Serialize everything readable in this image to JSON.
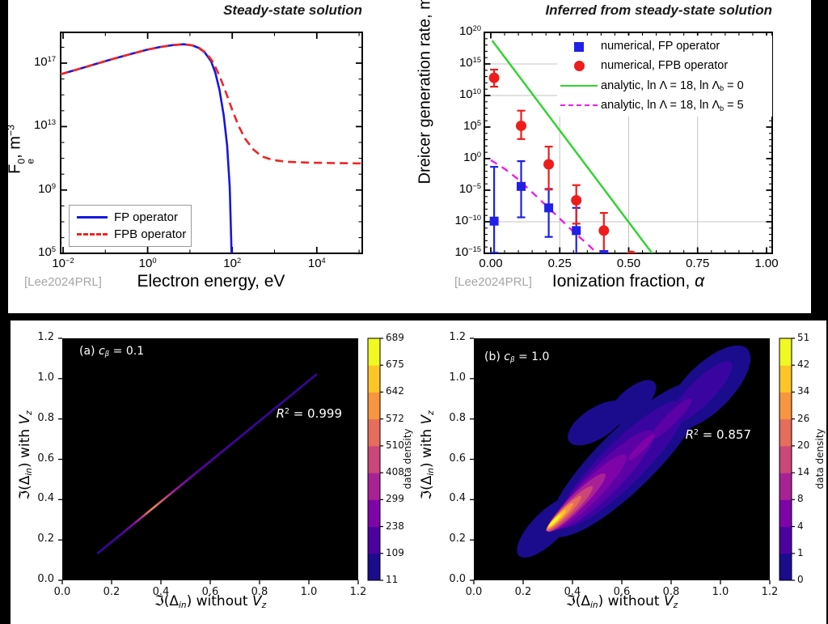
{
  "page": {
    "background": "#000000",
    "panel_background": "#ffffff"
  },
  "chart_data": {
    "top_left": {
      "type": "line",
      "title": "Steady-state solution",
      "xlabel": "Electron energy, eV",
      "ylabel_html": "F<span class=\"ss\"><span>0</span><span>e</span></span>, m<sup>−3</sup>",
      "citation": "[Lee2024PRL]",
      "x_axis": "log10 electron energy (eV)",
      "y_axis": "log10 F (m^-3)",
      "x_tick_exps": [
        -2,
        0,
        2,
        4
      ],
      "y_tick_exps": [
        17,
        13,
        9,
        5
      ],
      "xlim_exp": [
        -2.06,
        5.07
      ],
      "ylim_exp": [
        5,
        18.9
      ],
      "legend": [
        {
          "label": "FP operator",
          "color": "#1717e0",
          "dash": false
        },
        {
          "label": "FPB operator",
          "color": "#ee2525",
          "dash": true
        }
      ],
      "fp_curve": [
        [
          -2.06,
          16.3
        ],
        [
          -1.6,
          16.65
        ],
        [
          -1.2,
          16.97
        ],
        [
          -0.8,
          17.28
        ],
        [
          -0.4,
          17.57
        ],
        [
          0,
          17.85
        ],
        [
          0.3,
          18.02
        ],
        [
          0.6,
          18.14
        ],
        [
          0.85,
          18.19
        ],
        [
          1.05,
          18.12
        ],
        [
          1.2,
          17.97
        ],
        [
          1.35,
          17.68
        ],
        [
          1.5,
          17.12
        ],
        [
          1.6,
          16.4
        ],
        [
          1.7,
          15.3
        ],
        [
          1.8,
          13.7
        ],
        [
          1.88,
          11.8
        ],
        [
          1.94,
          9.2
        ],
        [
          1.985,
          5.0
        ]
      ],
      "fpb_curve": [
        [
          -2.06,
          16.3
        ],
        [
          -1.6,
          16.65
        ],
        [
          -1.2,
          16.97
        ],
        [
          -0.8,
          17.28
        ],
        [
          -0.4,
          17.57
        ],
        [
          0,
          17.85
        ],
        [
          0.3,
          18.02
        ],
        [
          0.6,
          18.14
        ],
        [
          0.85,
          18.19
        ],
        [
          1.05,
          18.13
        ],
        [
          1.2,
          18.0
        ],
        [
          1.4,
          17.6
        ],
        [
          1.55,
          17.05
        ],
        [
          1.7,
          16.2
        ],
        [
          1.85,
          15.15
        ],
        [
          2.0,
          14.05
        ],
        [
          2.15,
          13.05
        ],
        [
          2.3,
          12.25
        ],
        [
          2.5,
          11.55
        ],
        [
          2.7,
          11.12
        ],
        [
          2.95,
          10.9
        ],
        [
          3.3,
          10.78
        ],
        [
          3.8,
          10.73
        ],
        [
          4.4,
          10.7
        ],
        [
          5.07,
          10.68
        ]
      ]
    },
    "top_right": {
      "type": "scatter",
      "title": "Inferred from steady-state solution",
      "xlabel_html": "Ionization fraction, <i>α</i>",
      "ylabel_html": "Dreicer generation rate, m<sup>−3</sup>s<sup>−1</sup>",
      "citation": "[Lee2024PRL]",
      "x_tick_vals": [
        0,
        0.25,
        0.5,
        0.75,
        1.0
      ],
      "x_tick_labels": [
        "0.00",
        "0.25",
        "0.50",
        "0.75",
        "1.00"
      ],
      "y_tick_exps": [
        20,
        15,
        10,
        5,
        0,
        -5,
        -10,
        -15
      ],
      "ylim_exp": [
        -15,
        20
      ],
      "grid_x": [
        0.25,
        0.5,
        0.75
      ],
      "grid_y_exps": [
        15,
        10,
        -10
      ],
      "legend": [
        {
          "marker": "square",
          "color": "#2020e8",
          "label_html": "numerical, FP operator"
        },
        {
          "marker": "circle",
          "color": "#ee1c1c",
          "label_html": "numerical, FPB operator"
        },
        {
          "marker": "line",
          "color": "#2dd52d",
          "label_html": "analytic, ln Λ = 18, ln Λ<sub>b</sub> = 0"
        },
        {
          "marker": "dashline",
          "color": "#ee1cee",
          "label_html": "analytic, ln Λ = 18, ln Λ<sub>b</sub> = 5"
        }
      ],
      "analytic_lnLb0": [
        [
          0.005,
          18.7
        ],
        [
          0.585,
          -15
        ]
      ],
      "analytic_lnLb5": [
        [
          0,
          -0.25
        ],
        [
          0.05,
          -1.6
        ],
        [
          0.1,
          -3.3
        ],
        [
          0.15,
          -5.35
        ],
        [
          0.2,
          -7.4
        ],
        [
          0.25,
          -9.5
        ],
        [
          0.3,
          -11.6
        ],
        [
          0.35,
          -13.5
        ],
        [
          0.388,
          -15.1
        ]
      ],
      "fp_points": [
        {
          "x": 0.012,
          "y": -9.9,
          "lo": -14.9,
          "hi": -1.3
        },
        {
          "x": 0.11,
          "y": -4.4,
          "lo": -9.3,
          "hi": -0.4
        },
        {
          "x": 0.21,
          "y": -7.8,
          "lo": -12.4,
          "hi": -4.8
        },
        {
          "x": 0.31,
          "y": -11.4,
          "lo": -15.5,
          "hi": -7.8
        },
        {
          "x": 0.41,
          "y": -15.2,
          "lo": -18,
          "hi": -15.0
        }
      ],
      "fpb_points": [
        {
          "x": 0.012,
          "y": 12.8,
          "lo": 11.4,
          "hi": 14.1
        },
        {
          "x": 0.11,
          "y": 5.2,
          "lo": 3.1,
          "hi": 7.6
        },
        {
          "x": 0.21,
          "y": -0.9,
          "lo": -4.9,
          "hi": 1.9
        },
        {
          "x": 0.31,
          "y": -6.6,
          "lo": -10.3,
          "hi": -4.2
        },
        {
          "x": 0.41,
          "y": -11.4,
          "lo": -15.6,
          "hi": -8.6
        },
        {
          "x": 0.51,
          "y": -15.4,
          "lo": -18,
          "hi": -15.2
        }
      ]
    },
    "bottom_left": {
      "type": "heatmap",
      "panel_label_html": "(a) <i>c<sub>β</sub></i> = 0.1",
      "r2_html": "<i>R</i><sup>2</sup> = 0.999",
      "xlabel_html": "ℑ(Δ<i><sub>in</sub></i>) without <i>V<sub>z</sub></i>",
      "ylabel_html": "ℑ(Δ<i><sub>in</sub></i>) with <i>V<sub>z</sub></i>",
      "tick_step": 0.2,
      "tick_max": 1.2,
      "line": {
        "x1": 0.145,
        "y1": 0.135,
        "x2": 1.03,
        "y2": 1.02,
        "gradient": [
          {
            "t": 0,
            "c": "#30059a"
          },
          {
            "t": 0.1,
            "c": "#4a04a1"
          },
          {
            "t": 0.16,
            "c": "#7e09a7"
          },
          {
            "t": 0.2,
            "c": "#b03390"
          },
          {
            "t": 0.23,
            "c": "#e0706a"
          },
          {
            "t": 0.26,
            "c": "#ec8253"
          },
          {
            "t": 0.3,
            "c": "#cf4d78"
          },
          {
            "t": 0.36,
            "c": "#99149f"
          },
          {
            "t": 0.45,
            "c": "#5b01a7"
          },
          {
            "t": 0.62,
            "c": "#4203a0"
          },
          {
            "t": 1,
            "c": "#38049b"
          }
        ]
      },
      "colorbar": {
        "label": "data density",
        "ticks": [
          "689",
          "675",
          "642",
          "572",
          "510",
          "408",
          "299",
          "238",
          "109",
          "11"
        ],
        "band_colors": [
          "#1b0c8e",
          "#4c02a1",
          "#7e03a8",
          "#a82296",
          "#cb4679",
          "#e66c5c",
          "#f89540",
          "#fdc527",
          "#f0f921"
        ]
      }
    },
    "bottom_right": {
      "type": "heatmap",
      "panel_label_html": "(b) <i>c<sub>β</sub></i> = 1.0",
      "r2_html": "<i>R</i><sup>2</sup> = 0.857",
      "xlabel_html": "ℑ(Δ<i><sub>in</sub></i>) without <i>V<sub>z</sub></i>",
      "ylabel_html": "ℑ(Δ<i><sub>in</sub></i>) with <i>V<sub>z</sub></i>",
      "tick_step": 0.2,
      "tick_max": 1.2,
      "colorbar": {
        "label": "data density",
        "ticks": [
          "51",
          "42",
          "34",
          "26",
          "20",
          "14",
          "8",
          "4",
          "1",
          "0"
        ],
        "band_colors": [
          "#1b0c8e",
          "#4c02a1",
          "#7e03a8",
          "#a82296",
          "#cb4679",
          "#e66c5c",
          "#f89540",
          "#fdc527",
          "#f0f921"
        ]
      },
      "blob_layers": [
        {
          "cx": 0.62,
          "cy": 0.6,
          "a": 0.52,
          "b": 0.145,
          "rot": -44.8,
          "color": "#1b0c8e"
        },
        {
          "cx": 0.95,
          "cy": 0.955,
          "a": 0.27,
          "b": 0.115,
          "rot": -44.8,
          "color": "#1b0c8e"
        },
        {
          "cx": 0.5,
          "cy": 0.78,
          "a": 0.165,
          "b": 0.075,
          "rot": -33,
          "color": "#1b0c8e"
        },
        {
          "cx": 0.64,
          "cy": 0.88,
          "a": 0.15,
          "b": 0.065,
          "rot": -42,
          "color": "#1b0c8e"
        },
        {
          "cx": 0.3,
          "cy": 0.265,
          "a": 0.2,
          "b": 0.075,
          "rot": -44.8,
          "color": "#1b0c8e"
        },
        {
          "cx": 0.6,
          "cy": 0.575,
          "a": 0.43,
          "b": 0.105,
          "rot": -44.8,
          "color": "#3a04a0"
        },
        {
          "cx": 0.92,
          "cy": 0.93,
          "a": 0.21,
          "b": 0.06,
          "rot": -44.8,
          "color": "#3a04a0"
        },
        {
          "cx": 0.53,
          "cy": 0.5,
          "a": 0.335,
          "b": 0.075,
          "rot": -44.8,
          "color": "#5c01a6"
        },
        {
          "cx": 0.8,
          "cy": 0.8,
          "a": 0.14,
          "b": 0.028,
          "rot": -44.8,
          "color": "#5c01a6"
        },
        {
          "cx": 0.465,
          "cy": 0.435,
          "a": 0.26,
          "b": 0.052,
          "rot": -44.8,
          "color": "#7e03a8"
        },
        {
          "cx": 0.68,
          "cy": 0.66,
          "a": 0.09,
          "b": 0.018,
          "rot": -44.8,
          "color": "#7e03a8"
        },
        {
          "cx": 0.415,
          "cy": 0.385,
          "a": 0.2,
          "b": 0.038,
          "rot": -44.8,
          "color": "#a82296"
        },
        {
          "cx": 0.39,
          "cy": 0.355,
          "a": 0.155,
          "b": 0.028,
          "rot": -44.8,
          "color": "#cb4679"
        },
        {
          "cx": 0.365,
          "cy": 0.332,
          "a": 0.12,
          "b": 0.021,
          "rot": -44.8,
          "color": "#e66c5c"
        },
        {
          "cx": 0.35,
          "cy": 0.318,
          "a": 0.09,
          "b": 0.015,
          "rot": -44.8,
          "color": "#f89540"
        },
        {
          "cx": 0.338,
          "cy": 0.305,
          "a": 0.062,
          "b": 0.011,
          "rot": -44.8,
          "color": "#fdc527"
        },
        {
          "cx": 0.328,
          "cy": 0.296,
          "a": 0.04,
          "b": 0.007,
          "rot": -44.8,
          "color": "#f0f921"
        }
      ]
    }
  }
}
